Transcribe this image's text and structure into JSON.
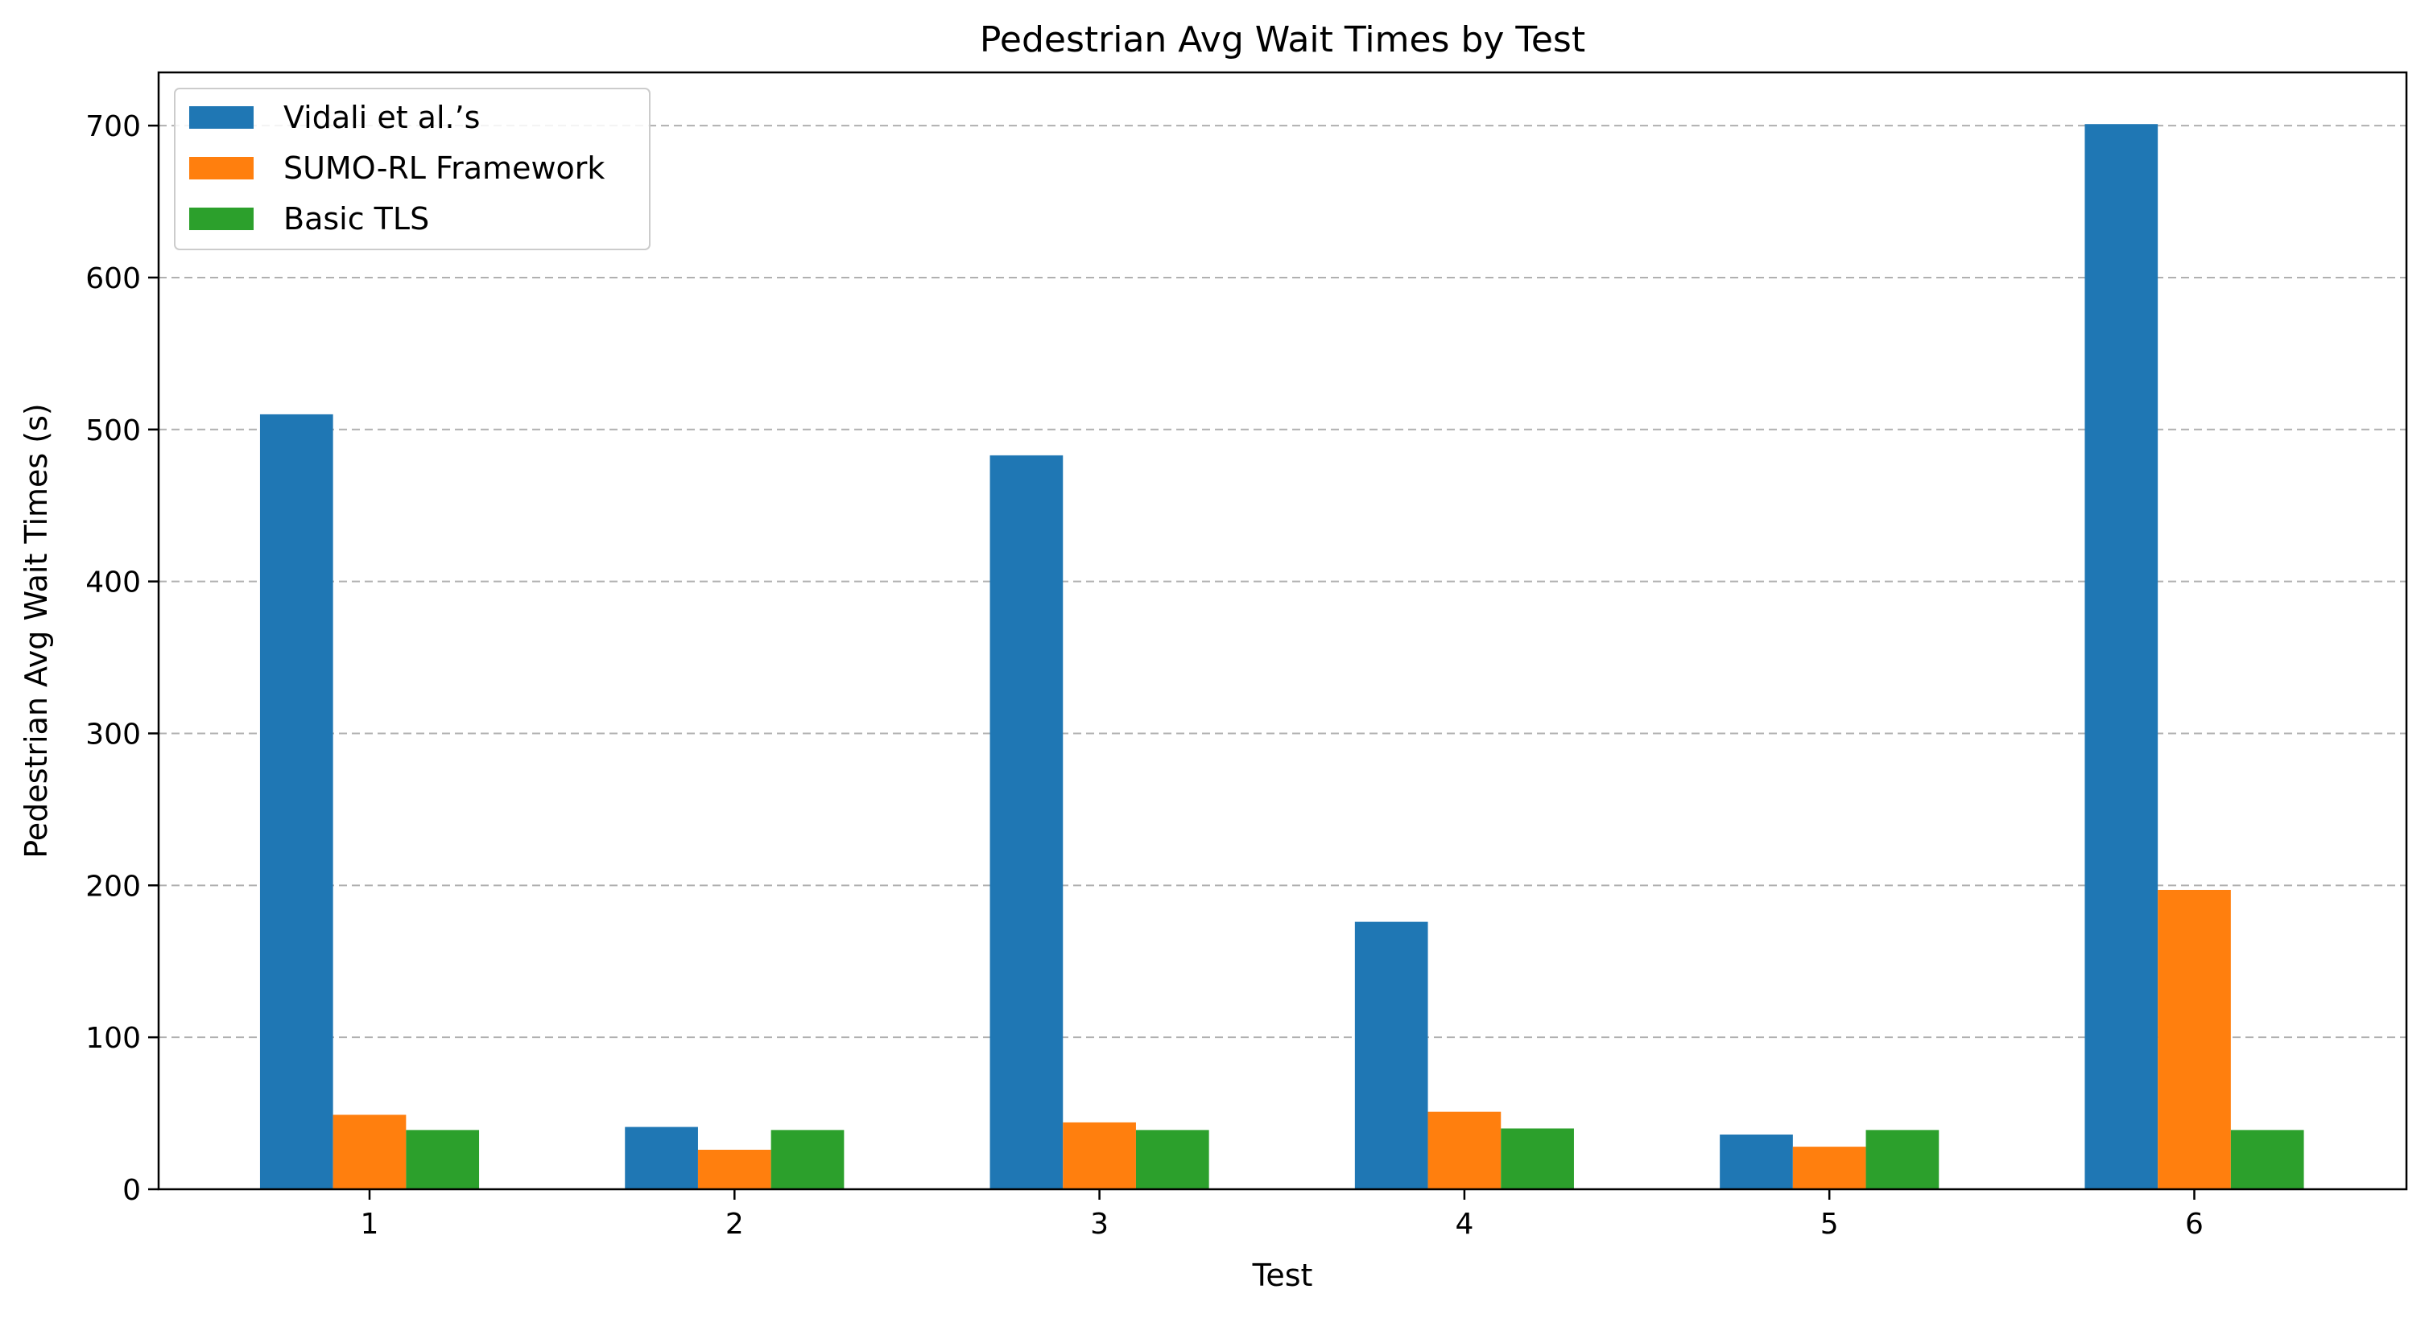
{
  "chart_data": {
    "type": "bar",
    "title": "Pedestrian Avg Wait Times by Test",
    "xlabel": "Test",
    "ylabel": "Pedestrian Avg Wait Times (s)",
    "categories": [
      "1",
      "2",
      "3",
      "4",
      "5",
      "6"
    ],
    "series": [
      {
        "name": "Vidali et al.’s",
        "color": "#1f77b4",
        "values": [
          510,
          41,
          483,
          176,
          36,
          701
        ]
      },
      {
        "name": "SUMO-RL Framework",
        "color": "#ff7f0e",
        "values": [
          49,
          26,
          44,
          51,
          28,
          197
        ]
      },
      {
        "name": "Basic TLS",
        "color": "#2ca02c",
        "values": [
          39,
          39,
          39,
          40,
          39,
          39
        ]
      }
    ],
    "ylim": [
      0,
      735
    ],
    "yticks": [
      0,
      100,
      200,
      300,
      400,
      500,
      600,
      700
    ],
    "grid": "y-dashed",
    "legend_position": "top-left"
  }
}
